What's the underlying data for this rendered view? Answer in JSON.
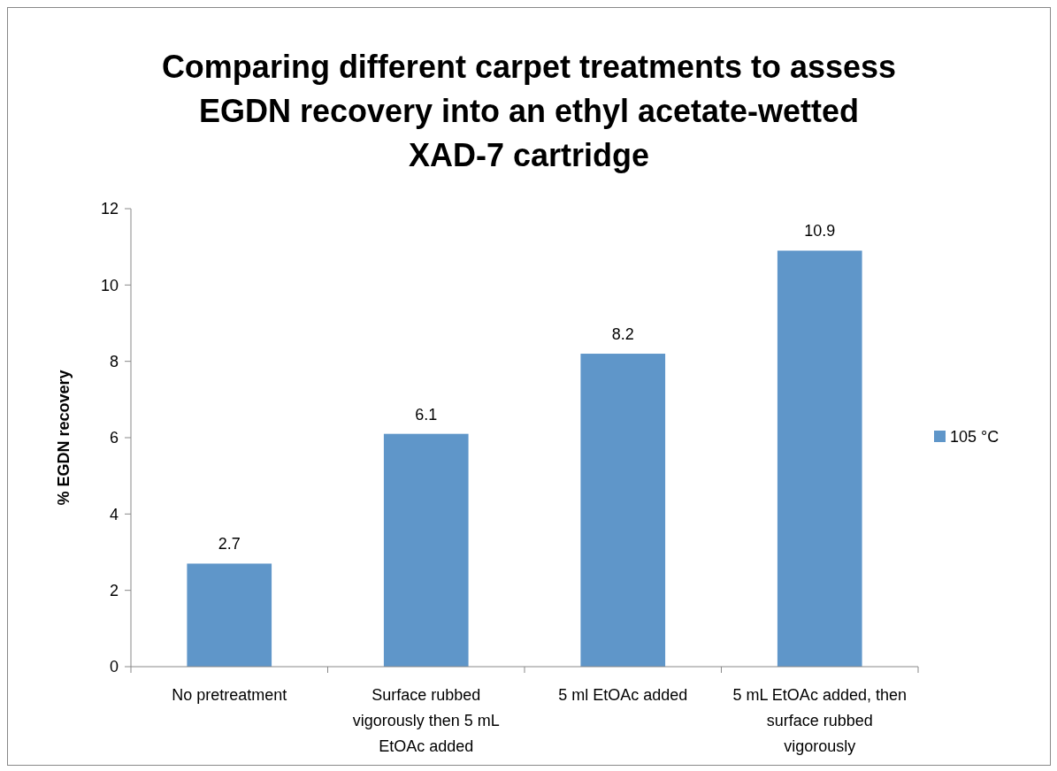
{
  "chart_data": {
    "type": "bar",
    "title": "Comparing different carpet treatments to assess EGDN recovery into an ethyl acetate-wetted XAD-7 cartridge",
    "ylabel": "% EGDN recovery",
    "categories": [
      "No pretreatment",
      "Surface rubbed vigorously then 5 mL EtOAc added",
      "5 ml EtOAc added",
      "5 mL EtOAc added, then surface rubbed vigorously"
    ],
    "series": [
      {
        "name": "105 °C",
        "color": "#5f96c9",
        "values": [
          2.7,
          6.1,
          8.2,
          10.9
        ]
      }
    ],
    "ylim": [
      0,
      12
    ],
    "yticks": [
      0,
      2,
      4,
      6,
      8,
      10,
      12
    ],
    "data_labels": true,
    "legend": "right",
    "grid": false
  }
}
